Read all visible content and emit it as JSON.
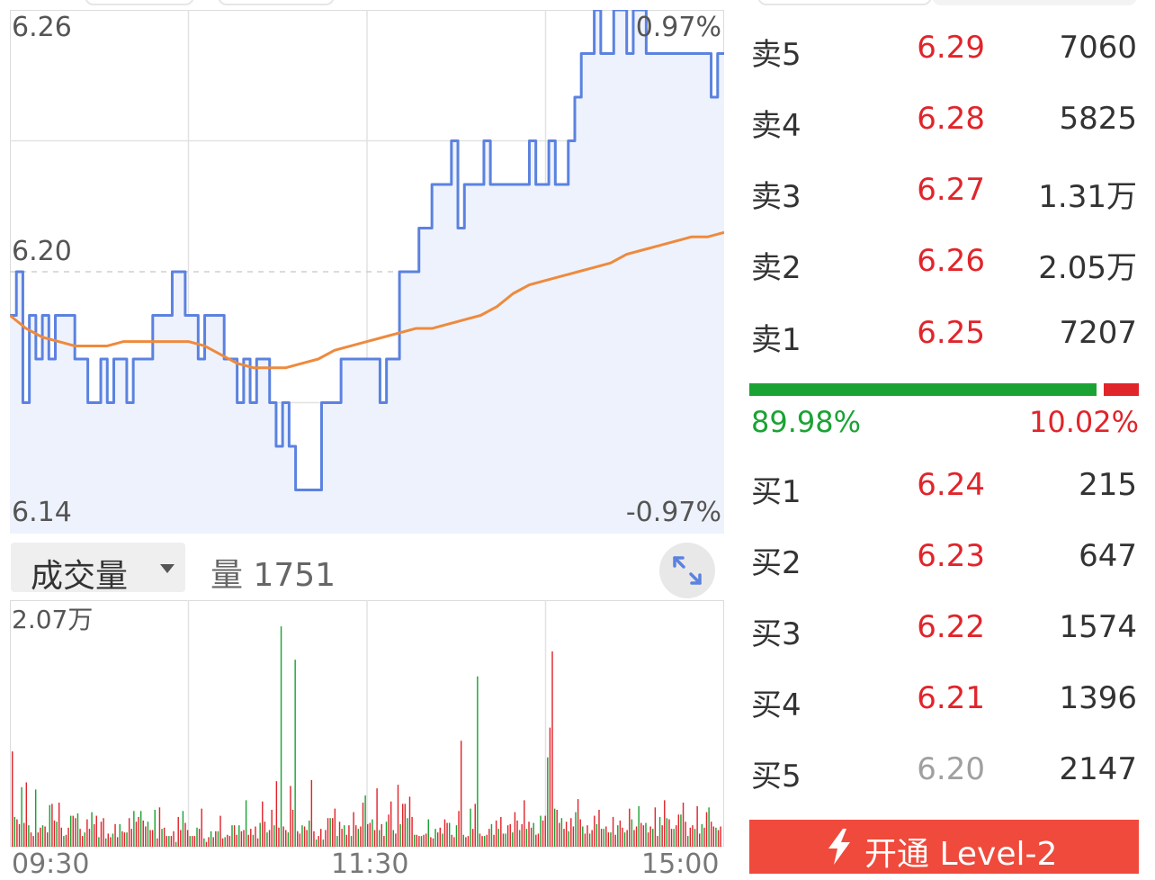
{
  "chart_data": [
    {
      "type": "line",
      "y_left_ticks": [
        "6.26",
        "6.20",
        "6.14"
      ],
      "y_right_ticks": [
        "0.97%",
        "-0.97%"
      ],
      "ylim": [
        6.14,
        6.26
      ],
      "prev_close": 6.2,
      "x_ticks": [
        "09:30",
        "11:30",
        "15:00"
      ],
      "series": [
        {
          "color": "#5b82e0",
          "values": [
            6.19,
            6.2,
            6.17,
            6.19,
            6.18,
            6.19,
            6.18,
            6.19,
            6.19,
            6.19,
            6.18,
            6.18,
            6.17,
            6.17,
            6.18,
            6.17,
            6.18,
            6.18,
            6.17,
            6.18,
            6.18,
            6.18,
            6.19,
            6.19,
            6.19,
            6.2,
            6.2,
            6.19,
            6.19,
            6.18,
            6.19,
            6.19,
            6.19,
            6.18,
            6.18,
            6.17,
            6.18,
            6.17,
            6.18,
            6.18,
            6.17,
            6.16,
            6.17,
            6.16,
            6.15,
            6.15,
            6.15,
            6.15,
            6.17,
            6.17,
            6.17,
            6.18,
            6.18,
            6.18,
            6.18,
            6.18,
            6.18,
            6.17,
            6.18,
            6.18,
            6.2,
            6.2,
            6.2,
            6.21,
            6.21,
            6.22,
            6.22,
            6.22,
            6.23,
            6.21,
            6.22,
            6.22,
            6.22,
            6.23,
            6.22,
            6.22,
            6.22,
            6.22,
            6.22,
            6.22,
            6.23,
            6.22,
            6.22,
            6.23,
            6.22,
            6.22,
            6.23,
            6.24,
            6.25,
            6.25,
            6.26,
            6.25,
            6.25,
            6.26,
            6.26,
            6.25,
            6.26,
            6.26,
            6.25,
            6.25,
            6.25,
            6.25,
            6.25,
            6.25,
            6.25,
            6.25,
            6.25,
            6.25,
            6.24,
            6.25,
            6.25
          ],
          "x_fraction_end": 1.0
        },
        {
          "color": "#ee8a3d",
          "values": [
            6.19,
            6.187,
            6.185,
            6.184,
            6.183,
            6.183,
            6.183,
            6.184,
            6.184,
            6.184,
            6.184,
            6.184,
            6.183,
            6.181,
            6.179,
            6.178,
            6.178,
            6.178,
            6.179,
            6.18,
            6.182,
            6.183,
            6.184,
            6.185,
            6.186,
            6.187,
            6.187,
            6.188,
            6.189,
            6.19,
            6.192,
            6.195,
            6.197,
            6.198,
            6.199,
            6.2,
            6.201,
            6.202,
            6.204,
            6.205,
            6.206,
            6.207,
            6.208,
            6.208,
            6.209
          ]
        }
      ]
    },
    {
      "type": "bar",
      "ytick_top": "2.07万",
      "ymax": 20700,
      "values": [
        8000,
        2500,
        2300,
        1900,
        5000,
        2000,
        5400,
        1800,
        1200,
        900,
        4800,
        1200,
        1600,
        1800,
        1700,
        1200,
        3500,
        3600,
        2200,
        2100,
        3700,
        1600,
        900,
        1000,
        1600,
        2600,
        2600,
        2400,
        2800,
        1500,
        900,
        1200,
        2300,
        1500,
        2900,
        1900,
        2600,
        800,
        2100,
        2400,
        700,
        1100,
        800,
        1100,
        1900,
        800,
        1900,
        1300,
        1200,
        1200,
        2400,
        1500,
        3000,
        2100,
        2500,
        3000,
        2200,
        1700,
        2100,
        1400,
        1400,
        3100,
        700,
        3300,
        1500,
        1600,
        900,
        900,
        900,
        1300,
        400,
        2500,
        1400,
        3000,
        2000,
        1400,
        900,
        900,
        900,
        1600,
        1500,
        3200,
        700,
        400,
        800,
        1300,
        800,
        1300,
        1300,
        2600,
        700,
        800,
        1000,
        900,
        1800,
        1800,
        1000,
        1800,
        1300,
        1400,
        3900,
        1000,
        1500,
        1000,
        1700,
        700,
        2000,
        3800,
        2100,
        1200,
        1400,
        3100,
        1800,
        5500,
        1600,
        18500,
        1700,
        1400,
        1200,
        5100,
        3100,
        15700,
        1300,
        1100,
        1800,
        1700,
        1400,
        2200,
        5600,
        1300,
        600,
        900,
        1500,
        600,
        1400,
        2400,
        2400,
        2400,
        3200,
        900,
        2100,
        1500,
        1800,
        1000,
        1800,
        900,
        2900,
        1800,
        1500,
        1700,
        3700,
        4300,
        1900,
        2000,
        2300,
        1400,
        4900,
        1400,
        1900,
        900,
        2100,
        2700,
        3800,
        1400,
        1100,
        5200,
        1900,
        3600,
        3600,
        2400,
        4200,
        2500,
        1000,
        1000,
        900,
        900,
        1000,
        1100,
        2300,
        800,
        700,
        1500,
        1200,
        1600,
        1100,
        2300,
        2000,
        2000,
        1000,
        800,
        1800,
        3000,
        8900,
        1000,
        800,
        900,
        3200,
        1500,
        3600,
        14300,
        1100,
        900,
        900,
        1000,
        1500,
        1900,
        1000,
        2200,
        1500,
        2500,
        1100,
        1100,
        1800,
        1900,
        1200,
        2900,
        2200,
        1400,
        1900,
        3900,
        1500,
        2100,
        1600,
        2000,
        1000,
        1100,
        2600,
        2200,
        2600,
        7500,
        10000,
        16400,
        3200,
        3100,
        2000,
        2400,
        1500,
        2100,
        1300,
        2400,
        1700,
        2900,
        4000,
        2300,
        1700,
        1100,
        1800,
        1100,
        1400,
        2600,
        1900,
        3100,
        1500,
        1500,
        1700,
        1200,
        1200,
        2500,
        1000,
        1800,
        2200,
        1600,
        1200,
        1400,
        3200,
        2300,
        1400,
        1700,
        3400,
        2000,
        1800,
        2000,
        1200,
        1700,
        1500,
        3300,
        900,
        2500,
        1800,
        3900,
        2400,
        2300,
        1500,
        1500,
        1800,
        2700,
        2700,
        3700,
        2100,
        900,
        1600,
        1800,
        1500,
        3400,
        1100,
        1900,
        1600,
        2900,
        3300,
        2100,
        1700,
        1600,
        1400,
        1700
      ],
      "colors_pattern": "alternating red/green per minute"
    }
  ],
  "volume_header": {
    "select_label": "成交量",
    "volume_text": "量 1751"
  },
  "order_book": {
    "asks": [
      {
        "label": "卖5",
        "price": "6.29",
        "qty": "7060",
        "price_color": "red"
      },
      {
        "label": "卖4",
        "price": "6.28",
        "qty": "5825",
        "price_color": "red"
      },
      {
        "label": "卖3",
        "price": "6.27",
        "qty": "1.31万",
        "price_color": "red"
      },
      {
        "label": "卖2",
        "price": "6.26",
        "qty": "2.05万",
        "price_color": "red"
      },
      {
        "label": "卖1",
        "price": "6.25",
        "qty": "7207",
        "price_color": "red"
      }
    ],
    "bids": [
      {
        "label": "买1",
        "price": "6.24",
        "qty": "215",
        "price_color": "red"
      },
      {
        "label": "买2",
        "price": "6.23",
        "qty": "647",
        "price_color": "red"
      },
      {
        "label": "买3",
        "price": "6.22",
        "qty": "1574",
        "price_color": "red"
      },
      {
        "label": "买4",
        "price": "6.21",
        "qty": "1396",
        "price_color": "red"
      },
      {
        "label": "买5",
        "price": "6.20",
        "qty": "2147",
        "price_color": "gray"
      }
    ],
    "buy_pct": "89.98%",
    "sell_pct": "10.02%",
    "buy_ratio": 0.8998
  },
  "level2_button": {
    "label": "开通 Level-2"
  },
  "colors": {
    "price_line": "#5b82e0",
    "avg_line": "#ee8a3d",
    "up": "#e0252b",
    "down": "#1aa334",
    "area_fill": "#eef2fc"
  }
}
